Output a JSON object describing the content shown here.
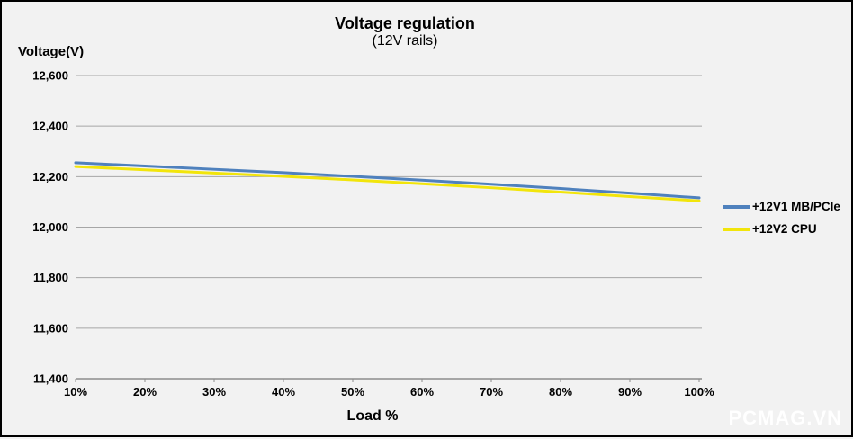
{
  "chart_data": {
    "type": "line",
    "title": "Voltage regulation",
    "subtitle": "(12V rails)",
    "ylabel": "Voltage(V)",
    "xlabel": "Load %",
    "x_values": [
      10,
      20,
      30,
      40,
      50,
      60,
      70,
      80,
      90,
      100
    ],
    "x_tick_labels": [
      "10%",
      "20%",
      "30%",
      "40%",
      "50%",
      "60%",
      "70%",
      "80%",
      "90%",
      "100%"
    ],
    "y_ticks": [
      11400,
      11600,
      11800,
      12000,
      12200,
      12400,
      12600
    ],
    "y_tick_labels": [
      "11,400",
      "11,600",
      "11,800",
      "12,000",
      "12,200",
      "12,400",
      "12,600"
    ],
    "ylim": [
      11400,
      12600
    ],
    "grid": "horizontal",
    "legend_position": "right",
    "series": [
      {
        "name": "+12V1 MB/PCIe",
        "color": "#4f81bd",
        "values": [
          12255,
          12242,
          12229,
          12216,
          12201,
          12186,
          12170,
          12153,
          12135,
          12116
        ]
      },
      {
        "name": "+12V2 CPU",
        "color": "#f2e50b",
        "values": [
          12240,
          12227,
          12214,
          12201,
          12187,
          12172,
          12156,
          12139,
          12121,
          12104
        ]
      }
    ]
  },
  "colors": {
    "background": "#f2f2f2",
    "border": "#000000",
    "gridline": "#a6a6a6",
    "axis": "#8c8c8c",
    "text": "#000000",
    "watermark": "#ffffff"
  },
  "watermark": {
    "text": "PCMAG.VN"
  }
}
